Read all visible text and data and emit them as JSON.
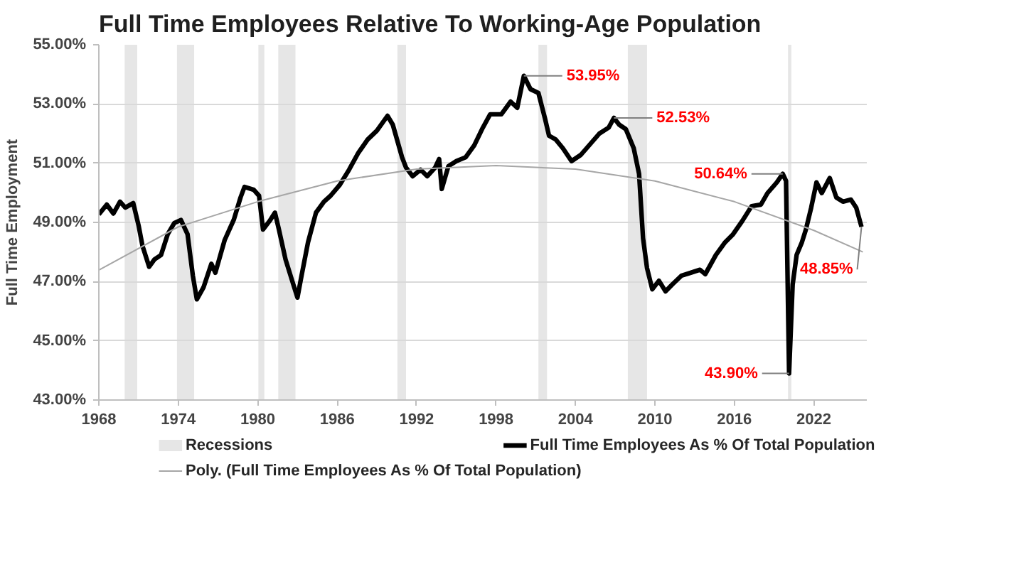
{
  "chart_data": {
    "type": "line",
    "title": "Full Time Employees Relative To Working-Age Population",
    "ylabel": "Full Time Employment",
    "xlim": [
      1968,
      2026
    ],
    "xticks": [
      1968,
      1974,
      1980,
      1986,
      1992,
      1998,
      2004,
      2010,
      2016,
      2022
    ],
    "ylim": [
      43,
      55
    ],
    "yticks": [
      {
        "value": 43,
        "label": "43.00%"
      },
      {
        "value": 45,
        "label": "45.00%"
      },
      {
        "value": 47,
        "label": "47.00%"
      },
      {
        "value": 49,
        "label": "49.00%"
      },
      {
        "value": 51,
        "label": "51.00%"
      },
      {
        "value": 53,
        "label": "53.00%"
      },
      {
        "value": 55,
        "label": "55.00%"
      }
    ],
    "grid": "y",
    "legend": "bottom",
    "series": [
      {
        "name": "Full Time Employees As % Of Total Population",
        "color": "#000000",
        "x": [
          1968.0,
          1968.6,
          1969.1,
          1969.6,
          1970.0,
          1970.6,
          1971.0,
          1971.3,
          1971.8,
          1972.2,
          1972.7,
          1973.2,
          1973.7,
          1974.2,
          1974.7,
          1975.1,
          1975.4,
          1975.9,
          1976.5,
          1976.8,
          1977.5,
          1978.2,
          1978.7,
          1979.0,
          1979.7,
          1980.1,
          1980.4,
          1980.9,
          1981.3,
          1981.6,
          1982.1,
          1982.6,
          1983.0,
          1983.3,
          1983.8,
          1984.4,
          1985.0,
          1985.5,
          1986.2,
          1986.9,
          1987.6,
          1988.3,
          1989.0,
          1989.8,
          1990.2,
          1990.9,
          1991.2,
          1991.7,
          1992.3,
          1992.8,
          1993.4,
          1993.7,
          1993.9,
          1994.4,
          1995.0,
          1995.7,
          1996.35,
          1997.0,
          1997.55,
          1998.4,
          1999.1,
          1999.6,
          2000.1,
          2000.6,
          2001.2,
          2001.7,
          2002.0,
          2002.5,
          2003.05,
          2003.7,
          2004.4,
          2005.1,
          2005.8,
          2006.5,
          2006.9,
          2007.3,
          2007.8,
          2008.4,
          2008.8,
          2009.1,
          2009.4,
          2009.8,
          2010.3,
          2010.8,
          2011.3,
          2012.0,
          2012.7,
          2013.4,
          2013.8,
          2014.6,
          2015.3,
          2015.9,
          2016.6,
          2017.3,
          2018.0,
          2018.5,
          2019.2,
          2019.65,
          2019.9,
          2020.13,
          2020.4,
          2020.7,
          2021.1,
          2021.4,
          2021.8,
          2022.2,
          2022.6,
          2023.2,
          2023.7,
          2024.2,
          2024.8,
          2025.2,
          2025.6
        ],
        "values": [
          49.27,
          49.6,
          49.3,
          49.7,
          49.5,
          49.65,
          48.9,
          48.2,
          47.5,
          47.75,
          47.9,
          48.6,
          48.98,
          49.08,
          48.6,
          47.2,
          46.4,
          46.8,
          47.6,
          47.3,
          48.4,
          49.1,
          49.84,
          50.2,
          50.1,
          49.9,
          48.76,
          49.05,
          49.33,
          48.76,
          47.75,
          47.03,
          46.46,
          47.18,
          48.33,
          49.33,
          49.7,
          49.9,
          50.27,
          50.78,
          51.35,
          51.8,
          52.1,
          52.6,
          52.3,
          51.2,
          50.85,
          50.56,
          50.78,
          50.56,
          50.85,
          51.14,
          50.13,
          50.9,
          51.07,
          51.2,
          51.6,
          52.2,
          52.65,
          52.65,
          53.08,
          52.87,
          53.95,
          53.5,
          53.37,
          52.5,
          51.93,
          51.8,
          51.5,
          51.07,
          51.28,
          51.64,
          52.0,
          52.2,
          52.53,
          52.3,
          52.15,
          51.5,
          50.64,
          48.47,
          47.46,
          46.74,
          47.03,
          46.67,
          46.9,
          47.2,
          47.3,
          47.4,
          47.25,
          47.9,
          48.33,
          48.6,
          49.05,
          49.55,
          49.6,
          49.99,
          50.35,
          50.64,
          50.4,
          43.9,
          46.9,
          47.9,
          48.33,
          48.76,
          49.5,
          50.35,
          49.99,
          50.5,
          49.84,
          49.7,
          49.77,
          49.5,
          48.85
        ]
      },
      {
        "name": "Poly. (Full Time Employees As % Of Total Population)",
        "color": "#a6a6a6",
        "x": [
          1968,
          1974,
          1980,
          1986,
          1992,
          1998,
          2004,
          2010,
          2016,
          2022,
          2025.7
        ],
        "values": [
          47.39,
          48.85,
          49.7,
          50.4,
          50.8,
          50.92,
          50.8,
          50.4,
          49.7,
          48.73,
          48.0
        ]
      }
    ],
    "bands": [
      {
        "axis": "x",
        "from": 1969.95,
        "to": 1970.9,
        "label": "Recessions",
        "color": "#e6e6e6"
      },
      {
        "axis": "x",
        "from": 1973.9,
        "to": 1975.2,
        "color": "#e6e6e6"
      },
      {
        "axis": "x",
        "from": 1980.05,
        "to": 1980.5,
        "color": "#e6e6e6"
      },
      {
        "axis": "x",
        "from": 1981.55,
        "to": 1982.85,
        "color": "#e6e6e6"
      },
      {
        "axis": "x",
        "from": 1990.55,
        "to": 1991.2,
        "color": "#e6e6e6"
      },
      {
        "axis": "x",
        "from": 2001.2,
        "to": 2001.85,
        "color": "#e6e6e6"
      },
      {
        "axis": "x",
        "from": 2007.95,
        "to": 2009.4,
        "color": "#e6e6e6"
      },
      {
        "axis": "x",
        "from": 2020.05,
        "to": 2020.3,
        "color": "#e6e6e6"
      }
    ],
    "annotations": [
      {
        "text": "53.95%",
        "x": 2000.1,
        "y": 53.95
      },
      {
        "text": "52.53%",
        "x": 2006.9,
        "y": 52.53
      },
      {
        "text": "50.64%",
        "x": 2019.65,
        "y": 50.64
      },
      {
        "text": "43.90%",
        "x": 2020.13,
        "y": 43.9
      },
      {
        "text": "48.85%",
        "x": 2025.6,
        "y": 48.85
      }
    ]
  }
}
